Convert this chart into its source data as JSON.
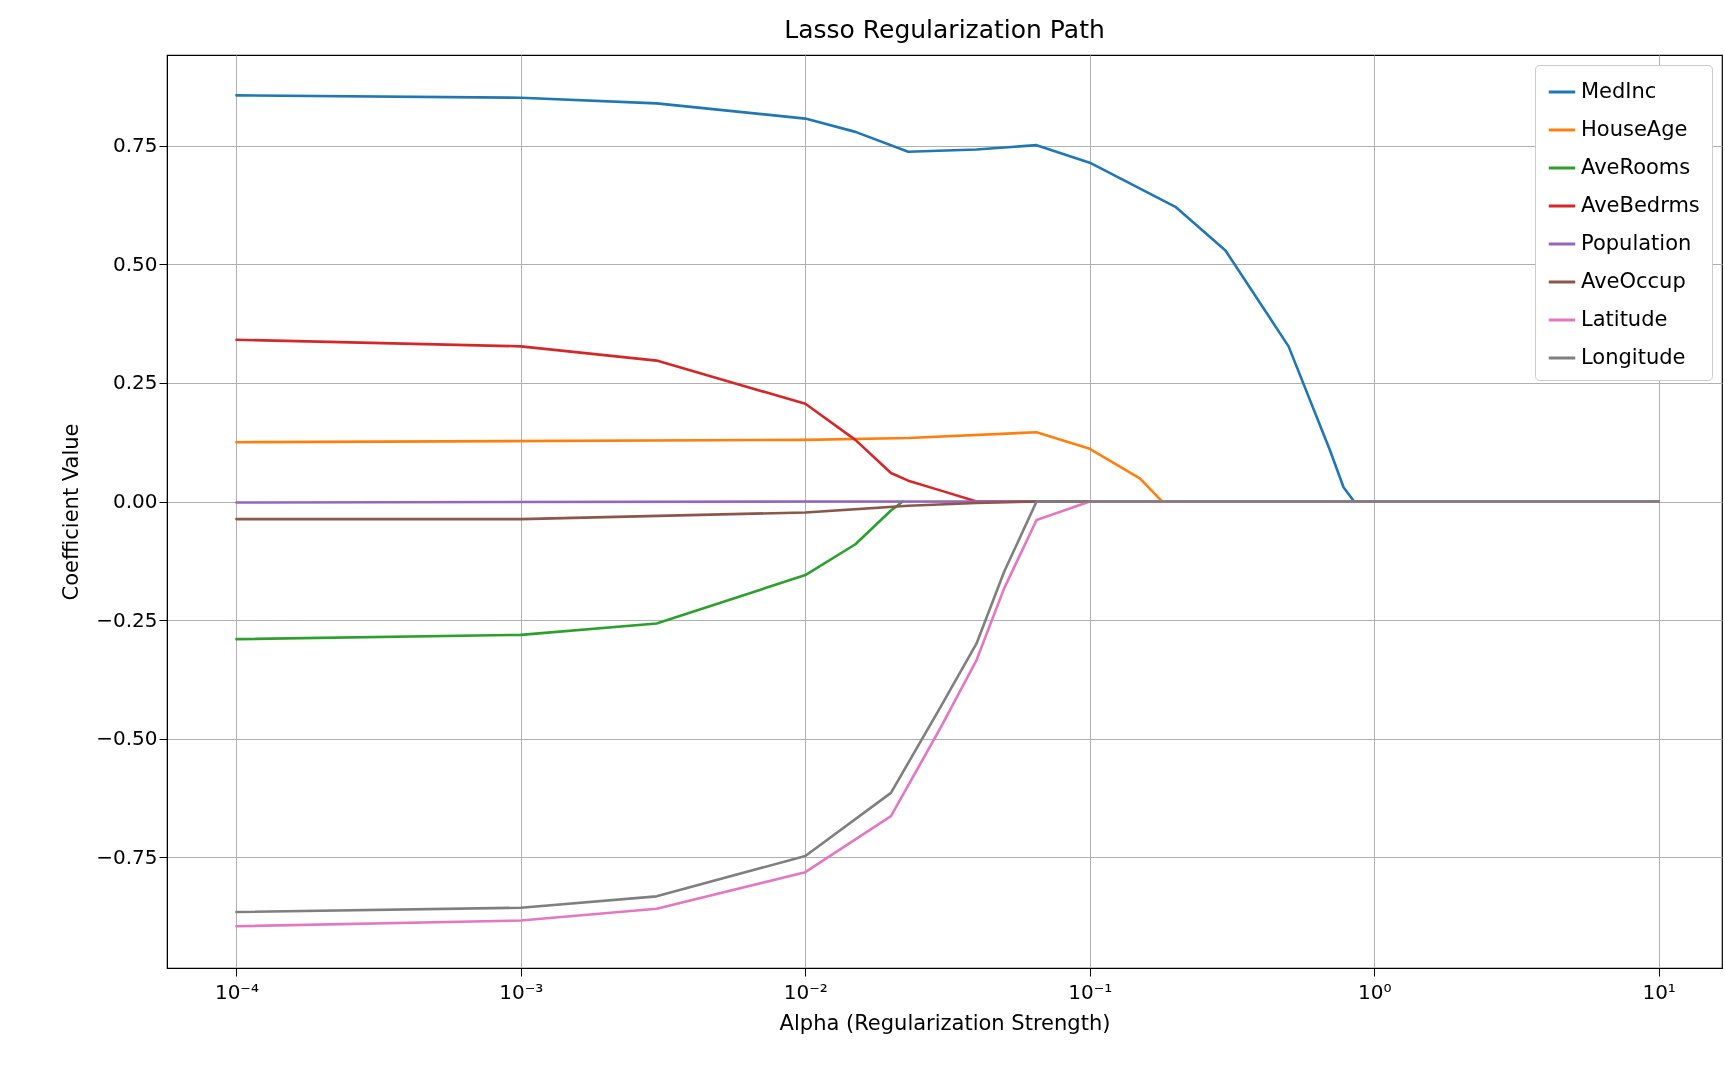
{
  "chart_data": {
    "type": "line",
    "title": "Lasso Regularization Path",
    "xlabel": "Alpha (Regularization Strength)",
    "ylabel": "Coefficient Value",
    "log": "x",
    "grid": true,
    "legend": "top right",
    "xlim": [
      5.7e-05,
      16.7
    ],
    "ylim": [
      -0.983,
      0.941
    ],
    "xticks": [
      {
        "value": 0.0001,
        "label": "10⁻⁴"
      },
      {
        "value": 0.001,
        "label": "10⁻³"
      },
      {
        "value": 0.01,
        "label": "10⁻²"
      },
      {
        "value": 0.1,
        "label": "10⁻¹"
      },
      {
        "value": 1,
        "label": "10⁰"
      },
      {
        "value": 10,
        "label": "10¹"
      }
    ],
    "yticks": [
      {
        "value": -0.75,
        "label": "−0.75"
      },
      {
        "value": -0.5,
        "label": "−0.50"
      },
      {
        "value": -0.25,
        "label": "−0.25"
      },
      {
        "value": 0,
        "label": "0.00"
      },
      {
        "value": 0.25,
        "label": "0.25"
      },
      {
        "value": 0.5,
        "label": "0.50"
      },
      {
        "value": 0.75,
        "label": "0.75"
      }
    ],
    "series": [
      {
        "name": "MedInc",
        "color": "#1f77b4",
        "x": [
          0.0001,
          0.001,
          0.003,
          0.01,
          0.015,
          0.023,
          0.04,
          0.065,
          0.1,
          0.2,
          0.3,
          0.5,
          0.7,
          0.78,
          0.85,
          10
        ],
        "values": [
          0.856,
          0.851,
          0.839,
          0.807,
          0.779,
          0.737,
          0.742,
          0.751,
          0.714,
          0.621,
          0.529,
          0.327,
          0.107,
          0.03,
          0,
          0
        ]
      },
      {
        "name": "HouseAge",
        "color": "#ff7f0e",
        "x": [
          0.0001,
          0.01,
          0.023,
          0.065,
          0.1,
          0.15,
          0.18,
          10
        ],
        "values": [
          0.125,
          0.13,
          0.134,
          0.146,
          0.111,
          0.049,
          0,
          0
        ]
      },
      {
        "name": "AveRooms",
        "color": "#2ca02c",
        "x": [
          0.0001,
          0.001,
          0.003,
          0.01,
          0.015,
          0.02,
          0.022
        ],
        "values": [
          -0.29,
          -0.281,
          -0.257,
          -0.155,
          -0.09,
          -0.019,
          0
        ]
      },
      {
        "name": "AveBedrms",
        "color": "#d62728",
        "x": [
          0.0001,
          0.001,
          0.003,
          0.01,
          0.015,
          0.02,
          0.023,
          0.03,
          0.04,
          10
        ],
        "values": [
          0.341,
          0.327,
          0.297,
          0.206,
          0.13,
          0.06,
          0.044,
          0.023,
          0,
          0
        ]
      },
      {
        "name": "Population",
        "color": "#9467bd",
        "x": [
          0.0001,
          0.01,
          10
        ],
        "values": [
          -0.002,
          0,
          0
        ]
      },
      {
        "name": "AveOccup",
        "color": "#8c564b",
        "x": [
          0.0001,
          0.001,
          0.01,
          0.023,
          0.04,
          0.065,
          10
        ],
        "values": [
          -0.037,
          -0.037,
          -0.023,
          -0.009,
          -0.003,
          0,
          0
        ]
      },
      {
        "name": "Latitude",
        "color": "#e377c2",
        "x": [
          0.0001,
          0.001,
          0.003,
          0.01,
          0.02,
          0.03,
          0.04,
          0.05,
          0.065,
          0.1,
          10
        ],
        "values": [
          -0.895,
          -0.883,
          -0.858,
          -0.781,
          -0.663,
          -0.475,
          -0.334,
          -0.183,
          -0.039,
          0,
          0
        ]
      },
      {
        "name": "Longitude",
        "color": "#7f7f7f",
        "x": [
          0.0001,
          0.001,
          0.003,
          0.01,
          0.02,
          0.03,
          0.04,
          0.05,
          0.065,
          10
        ],
        "values": [
          -0.865,
          -0.856,
          -0.832,
          -0.747,
          -0.614,
          -0.431,
          -0.299,
          -0.148,
          0,
          0
        ]
      }
    ]
  }
}
